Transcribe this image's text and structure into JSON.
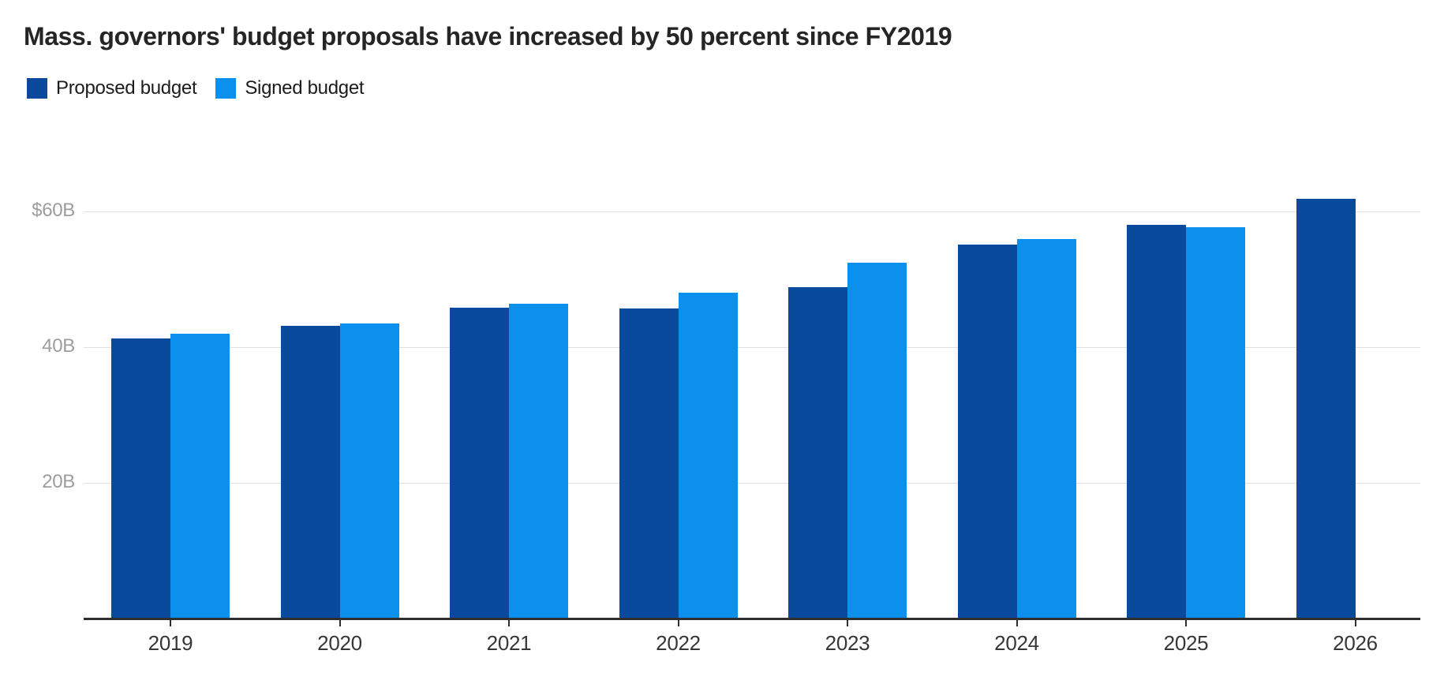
{
  "title": "Mass. governors' budget proposals have increased by 50 percent since FY2019",
  "legend": [
    {
      "label": "Proposed budget",
      "color": "#0a4a9d"
    },
    {
      "label": "Signed budget",
      "color": "#0c90ee"
    }
  ],
  "colors": {
    "proposed": "#0a4a9d",
    "signed": "#0c90ee",
    "gridline": "#e2e2e2",
    "axis": "#2e2e2e",
    "y_label_text": "#9d9d9d",
    "x_label_text": "#363636",
    "title_text": "#252525"
  },
  "chart_data": {
    "type": "bar",
    "title": "Mass. governors' budget proposals have increased by 50 percent since FY2019",
    "categories": [
      "2019",
      "2020",
      "2021",
      "2022",
      "2023",
      "2024",
      "2025",
      "2026"
    ],
    "series": [
      {
        "name": "Proposed budget",
        "color": "#0a4a9d",
        "values": [
          41.3,
          43.1,
          45.8,
          45.7,
          48.8,
          55.1,
          58.0,
          61.9
        ]
      },
      {
        "name": "Signed budget",
        "color": "#0c90ee",
        "values": [
          42.0,
          43.5,
          46.4,
          48.0,
          52.4,
          55.9,
          57.7,
          null
        ]
      }
    ],
    "unit": "billions of US dollars",
    "xlabel": "",
    "ylabel": "",
    "y_axis": {
      "min": 0,
      "max": 70,
      "ticks": [
        {
          "value": 20,
          "label": "20B"
        },
        {
          "value": 40,
          "label": "40B"
        },
        {
          "value": 60,
          "label": "$60B"
        }
      ]
    },
    "grid": true,
    "legend_position": "top-left"
  }
}
